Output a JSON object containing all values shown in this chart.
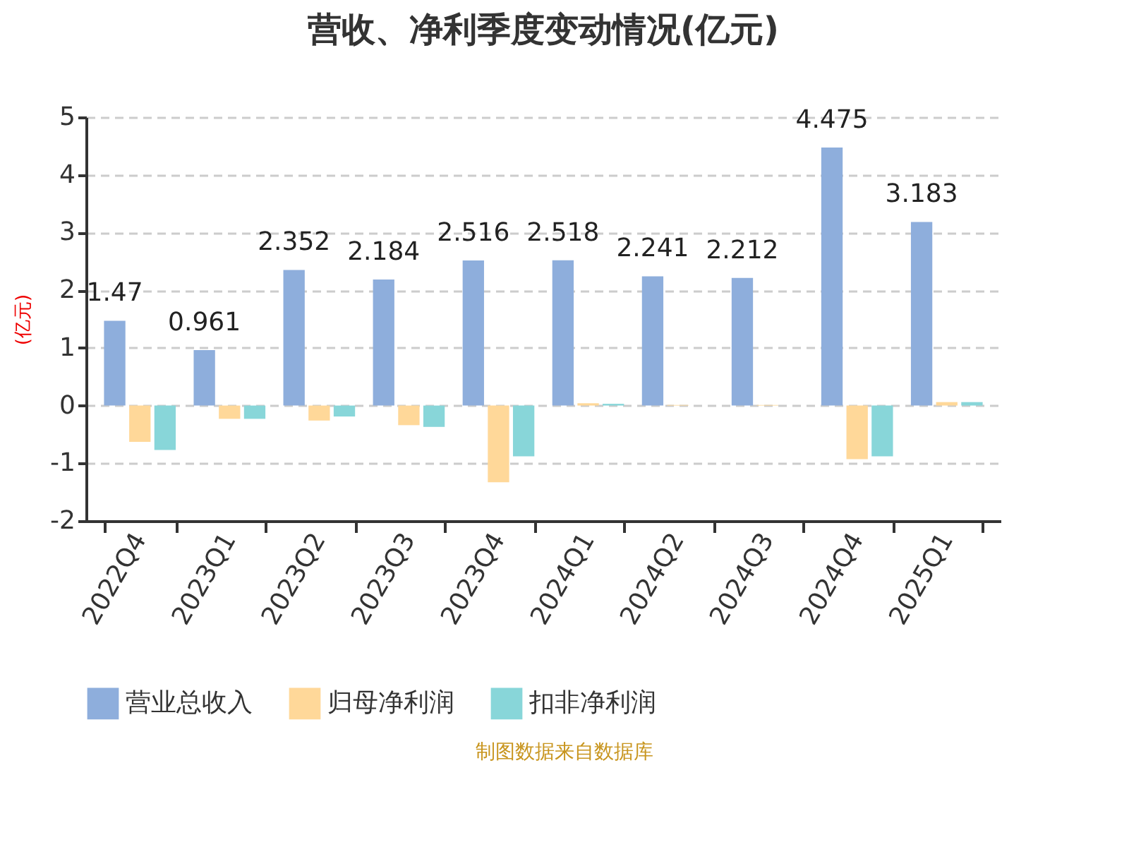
{
  "chart_data": {
    "type": "bar",
    "title": "营收、净利季度变动情况(亿元)",
    "ylabel": "(亿元)",
    "categories": [
      "2022Q4",
      "2023Q1",
      "2023Q2",
      "2023Q3",
      "2023Q4",
      "2024Q1",
      "2024Q2",
      "2024Q3",
      "2024Q4",
      "2025Q1"
    ],
    "series": [
      {
        "name": "营业总收入",
        "color": "#8eaedc",
        "values": [
          1.47,
          0.961,
          2.352,
          2.184,
          2.516,
          2.518,
          2.241,
          2.212,
          4.475,
          3.183
        ],
        "value_labels": [
          "1.47",
          "0.961",
          "2.352",
          "2.184",
          "2.516",
          "2.518",
          "2.241",
          "2.212",
          "4.475",
          "3.183"
        ]
      },
      {
        "name": "归母净利润",
        "color": "#ffd899",
        "values": [
          -0.63,
          -0.23,
          -0.26,
          -0.34,
          -1.33,
          0.04,
          0.01,
          0.01,
          -0.93,
          0.06
        ]
      },
      {
        "name": "扣非净利润",
        "color": "#88d6d9",
        "values": [
          -0.77,
          -0.23,
          -0.19,
          -0.37,
          -0.88,
          0.03,
          0,
          0,
          -0.88,
          0.06
        ]
      }
    ],
    "ylim": [
      -2,
      5
    ],
    "yticks": [
      -2,
      -1,
      0,
      1,
      2,
      3,
      4,
      5
    ],
    "grid": "y",
    "legend": "bottom",
    "annotations": [
      "制图数据来自数据库"
    ]
  }
}
